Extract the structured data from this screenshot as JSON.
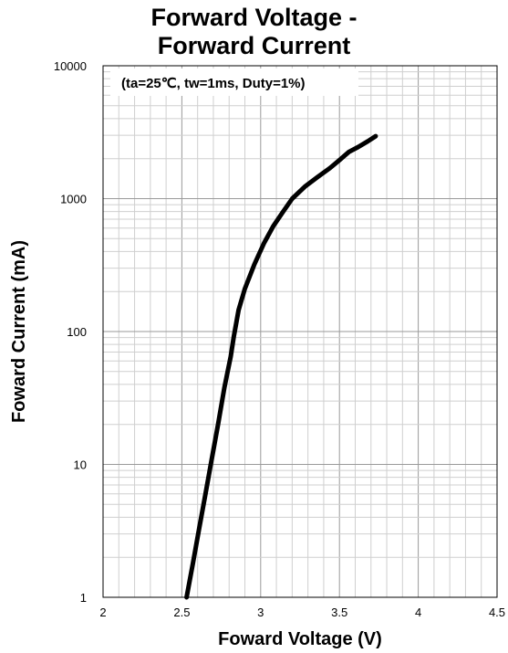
{
  "chart_data": {
    "type": "line",
    "title_line1": "Forward Voltage -",
    "title_line2": "Forward Current",
    "annotation": "(ta=25℃, tw=1ms, Duty=1%)",
    "xlabel": "Foward Voltage (V)",
    "ylabel": "Foward Current (mA)",
    "x_scale": "linear",
    "y_scale": "log",
    "xlim": [
      2,
      4.5
    ],
    "ylim": [
      1,
      10000
    ],
    "x_ticks": [
      "2",
      "2.5",
      "3",
      "3.5",
      "4",
      "4.5"
    ],
    "y_ticks": [
      "1",
      "10",
      "100",
      "1000",
      "10000"
    ],
    "grid": true,
    "legend": "none",
    "line_color": "#000000",
    "series": [
      {
        "x": [
          2.53,
          2.57,
          2.61,
          2.65,
          2.69,
          2.73,
          2.77,
          2.81,
          2.83,
          2.86,
          2.9,
          2.96,
          3.02,
          3.08,
          3.14,
          3.2,
          3.28,
          3.36,
          3.44,
          3.5,
          3.56,
          3.62,
          3.68,
          3.73
        ],
        "y": [
          1,
          1.8,
          3.3,
          6,
          11,
          20,
          38,
          65,
          92,
          145,
          210,
          320,
          460,
          620,
          790,
          1000,
          1230,
          1450,
          1700,
          1950,
          2250,
          2450,
          2700,
          2950
        ]
      }
    ]
  }
}
